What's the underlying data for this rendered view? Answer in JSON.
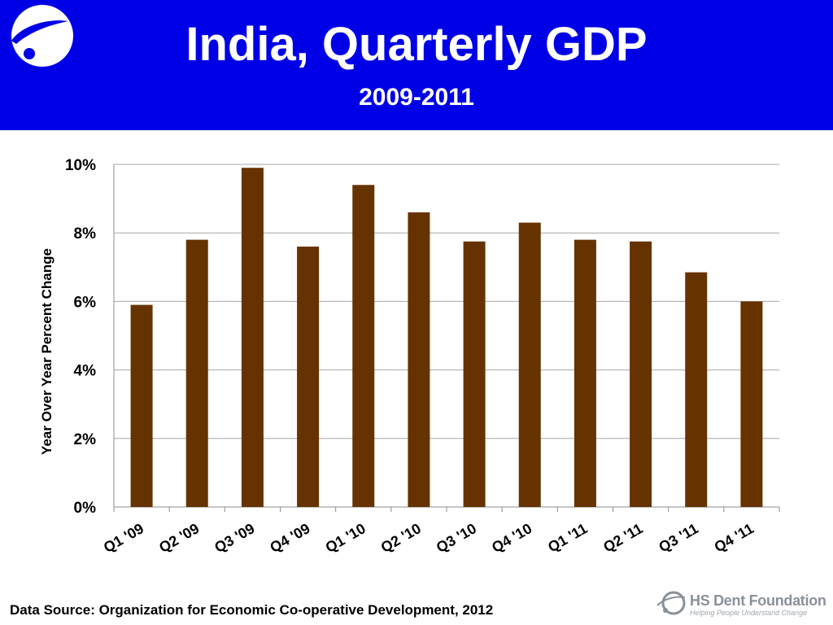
{
  "header": {
    "title": "India, Quarterly GDP",
    "subtitle": "2009-2011",
    "background": "#0000e6",
    "logo_icon": "hs-dent-swoosh-icon"
  },
  "footer": {
    "source": "Data Source: Organization for Economic Co-operative Development, 2012",
    "brand_name": "HS Dent Foundation",
    "brand_tagline": "Helping People Understand Change"
  },
  "chart_data": {
    "type": "bar",
    "title": "India, Quarterly GDP",
    "subtitle": "2009-2011",
    "xlabel": "",
    "ylabel": "Year Over Year Percent Change",
    "categories": [
      "Q1 '09",
      "Q2 '09",
      "Q3 '09",
      "Q4 '09",
      "Q1 '10",
      "Q2 '10",
      "Q3 '10",
      "Q4 '10",
      "Q1 '11",
      "Q2 '11",
      "Q3 '11",
      "Q4 '11"
    ],
    "values": [
      5.9,
      7.8,
      9.9,
      7.6,
      9.4,
      8.6,
      7.75,
      8.3,
      7.8,
      7.75,
      6.85,
      6.0
    ],
    "ylim": [
      0,
      10
    ],
    "yticks": [
      0,
      2,
      4,
      6,
      8,
      10
    ],
    "ytick_labels": [
      "0%",
      "2%",
      "4%",
      "6%",
      "8%",
      "10%"
    ],
    "bar_color": "#663300",
    "grid": true,
    "legend": "none"
  }
}
